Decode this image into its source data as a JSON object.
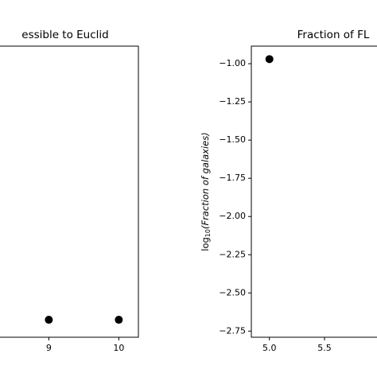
{
  "chart_data": [
    {
      "type": "scatter",
      "title": "essible to Euclid",
      "x": [
        9,
        10
      ],
      "y": [
        0.06,
        0.06
      ],
      "color": "#000000",
      "xlim": [
        7.7,
        10.28
      ],
      "ylim": [
        0,
        1
      ],
      "xticks": [
        9,
        10
      ]
    },
    {
      "type": "scatter",
      "title": "Fraction of FL",
      "ylabel": {
        "base": "log",
        "sub": "10",
        "rest": "(Fraction of galaxies)"
      },
      "x": [
        5.0
      ],
      "y": [
        -0.97
      ],
      "color": "#000000",
      "xlim": [
        4.836,
        6.2
      ],
      "ylim": [
        -2.79,
        -0.885
      ],
      "xticks": [
        {
          "value": 5,
          "label": "5.0"
        },
        {
          "value": 5.5,
          "label": "5.5"
        }
      ],
      "yticks": [
        {
          "value": -1,
          "label": "−1.00"
        },
        {
          "value": -1.25,
          "label": "−1.25"
        },
        {
          "value": -1.5,
          "label": "−1.50"
        },
        {
          "value": -1.75,
          "label": "−1.75"
        },
        {
          "value": -2,
          "label": "−2.00"
        },
        {
          "value": -2.25,
          "label": "−2.25"
        },
        {
          "value": -2.5,
          "label": "−2.50"
        },
        {
          "value": -2.75,
          "label": "−2.75"
        }
      ]
    }
  ]
}
